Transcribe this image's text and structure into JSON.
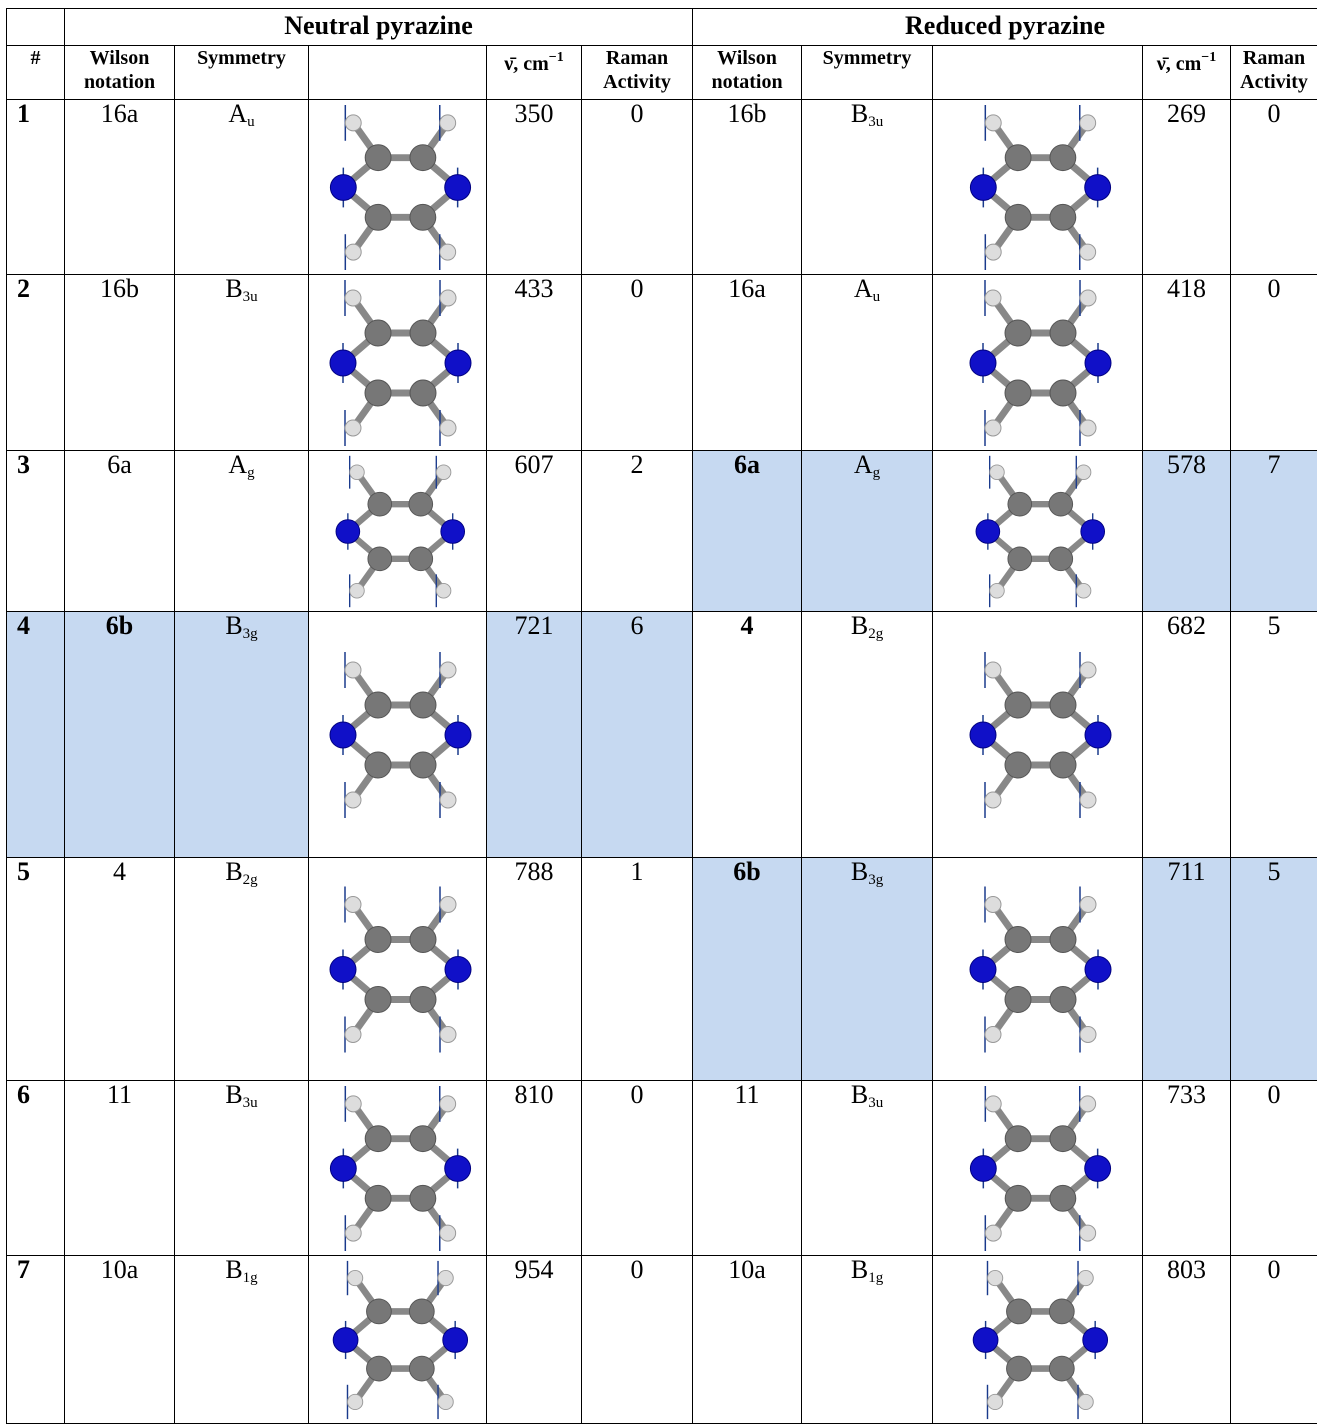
{
  "table": {
    "group_headers": [
      "Neutral pyrazine",
      "Reduced pyrazine"
    ],
    "column_headers": {
      "number": "#",
      "wilson": "Wilson notation",
      "symmetry": "Symmetry",
      "frequency": {
        "text": "ν̄, cm",
        "sup": "−1"
      },
      "raman": "Raman Activity"
    },
    "highlight_color": "#c6d9f1",
    "rows": [
      {
        "number": 1,
        "neutral": {
          "wilson": "16a",
          "symmetry": {
            "base": "A",
            "sub": "u"
          },
          "frequency": 350,
          "raman": 0
        },
        "reduced": {
          "wilson": "16b",
          "symmetry": {
            "base": "B",
            "sub": "3u"
          },
          "frequency": 269,
          "raman": 0
        }
      },
      {
        "number": 2,
        "neutral": {
          "wilson": "16b",
          "symmetry": {
            "base": "B",
            "sub": "3u"
          },
          "frequency": 433,
          "raman": 0
        },
        "reduced": {
          "wilson": "16a",
          "symmetry": {
            "base": "A",
            "sub": "u"
          },
          "frequency": 418,
          "raman": 0
        }
      },
      {
        "number": 3,
        "neutral": {
          "wilson": "6a",
          "symmetry": {
            "base": "A",
            "sub": "g"
          },
          "frequency": 607,
          "raman": 2
        },
        "reduced": {
          "wilson": "6a",
          "wilson_bold": true,
          "highlight": true,
          "symmetry": {
            "base": "A",
            "sub": "g"
          },
          "frequency": 578,
          "raman": 7
        }
      },
      {
        "number": 4,
        "number_highlight": true,
        "neutral": {
          "wilson": "6b",
          "wilson_bold": true,
          "highlight": true,
          "symmetry": {
            "base": "B",
            "sub": "3g"
          },
          "frequency": 721,
          "raman": 6
        },
        "reduced": {
          "wilson": "4",
          "wilson_bold": true,
          "symmetry": {
            "base": "B",
            "sub": "2g"
          },
          "frequency": 682,
          "raman": 5
        }
      },
      {
        "number": 5,
        "neutral": {
          "wilson": "4",
          "symmetry": {
            "base": "B",
            "sub": "2g"
          },
          "frequency": 788,
          "raman": 1
        },
        "reduced": {
          "wilson": "6b",
          "wilson_bold": true,
          "highlight": true,
          "symmetry": {
            "base": "B",
            "sub": "3g"
          },
          "frequency": 711,
          "raman": 5
        }
      },
      {
        "number": 6,
        "neutral": {
          "wilson": "11",
          "symmetry": {
            "base": "B",
            "sub": "3u"
          },
          "frequency": 810,
          "raman": 0
        },
        "reduced": {
          "wilson": "11",
          "symmetry": {
            "base": "B",
            "sub": "3u"
          },
          "frequency": 733,
          "raman": 0
        }
      },
      {
        "number": 7,
        "neutral": {
          "wilson": "10a",
          "symmetry": {
            "base": "B",
            "sub": "1g"
          },
          "frequency": 954,
          "raman": 0
        },
        "reduced": {
          "wilson": "10a",
          "symmetry": {
            "base": "B",
            "sub": "1g"
          },
          "frequency": 803,
          "raman": 0
        }
      }
    ]
  }
}
